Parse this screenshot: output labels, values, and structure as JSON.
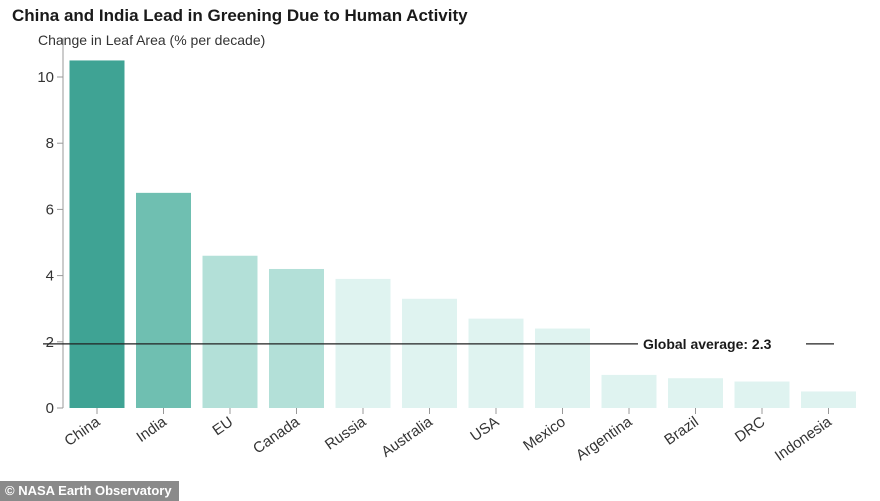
{
  "header": {
    "title": "China and India Lead in Greening Due to Human Activity",
    "subtitle": "Change in Leaf Area (% per decade)"
  },
  "credit": "© NASA Earth Observatory",
  "chart_data": {
    "type": "bar",
    "title": "China and India Lead in Greening Due to Human Activity",
    "subtitle": "Change in Leaf Area (% per decade)",
    "ylabel": "",
    "xlabel": "",
    "categories": [
      "China",
      "India",
      "EU",
      "Canada",
      "Russia",
      "Australia",
      "USA",
      "Mexico",
      "Argentina",
      "Brazil",
      "DRC",
      "Indonesia"
    ],
    "values": [
      10.5,
      6.5,
      4.6,
      4.2,
      3.9,
      3.3,
      2.7,
      2.4,
      1.0,
      0.9,
      0.8,
      0.5
    ],
    "colors": [
      "#3fa394",
      "#6fbfb1",
      "#b3e0d8",
      "#b3e0d8",
      "#dff3f0",
      "#dff3f0",
      "#dff3f0",
      "#dff3f0",
      "#dff3f0",
      "#dff3f0",
      "#dff3f0",
      "#dff3f0"
    ],
    "ylim": [
      0,
      11
    ],
    "yticks": [
      0,
      2,
      4,
      6,
      8,
      10
    ],
    "grid": false,
    "reference_line": {
      "value": 2.3,
      "label": "Global average: 2.3"
    }
  }
}
